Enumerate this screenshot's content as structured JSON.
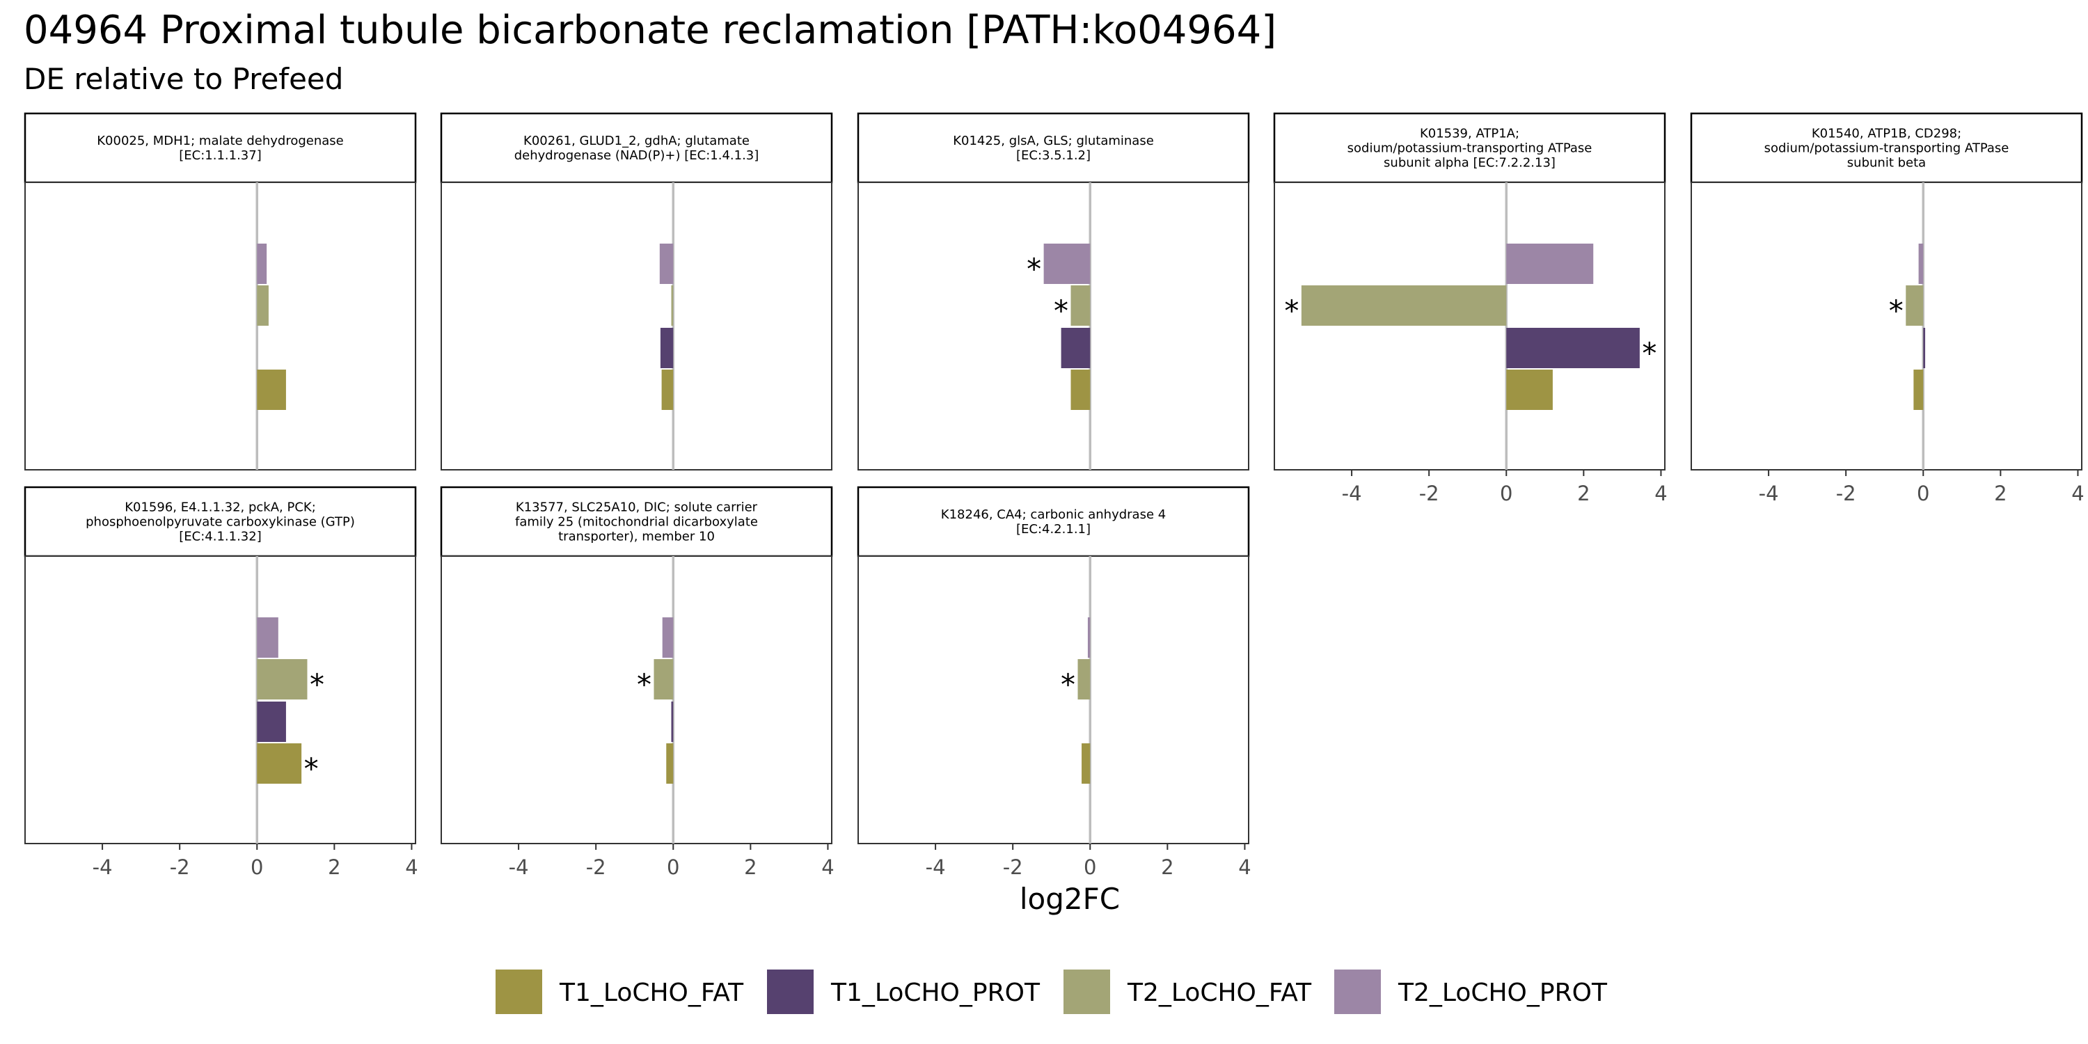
{
  "chart_data": {
    "type": "bar",
    "orientation": "horizontal",
    "title": "04964 Proximal tubule bicarbonate reclamation [PATH:ko04964]",
    "subtitle": "DE relative to Prefeed",
    "xlabel": "log2FC",
    "xlim": [
      -6,
      4.1
    ],
    "xticks": [
      "-4",
      "-2",
      "0",
      "2",
      "4"
    ],
    "legend_position": "bottom",
    "series": [
      {
        "name": "T1_LoCHO_FAT",
        "color": "#9e9444"
      },
      {
        "name": "T1_LoCHO_PROT",
        "color": "#56416f"
      },
      {
        "name": "T2_LoCHO_FAT",
        "color": "#a3a576"
      },
      {
        "name": "T2_LoCHO_PROT",
        "color": "#9c86a6"
      }
    ],
    "panels": [
      {
        "label_lines": [
          "K00025, MDH1; malate dehydrogenase",
          "[EC:1.1.1.37]"
        ],
        "values": {
          "T1_LoCHO_FAT": 0.75,
          "T1_LoCHO_PROT": null,
          "T2_LoCHO_FAT": 0.3,
          "T2_LoCHO_PROT": 0.25
        },
        "significant": {
          "T1_LoCHO_FAT": false,
          "T1_LoCHO_PROT": false,
          "T2_LoCHO_FAT": false,
          "T2_LoCHO_PROT": false
        }
      },
      {
        "label_lines": [
          "K00261, GLUD1_2, gdhA; glutamate",
          "dehydrogenase (NAD(P)+) [EC:1.4.1.3]"
        ],
        "values": {
          "T1_LoCHO_FAT": -0.3,
          "T1_LoCHO_PROT": -0.33,
          "T2_LoCHO_FAT": -0.05,
          "T2_LoCHO_PROT": -0.35
        },
        "significant": {
          "T1_LoCHO_FAT": false,
          "T1_LoCHO_PROT": false,
          "T2_LoCHO_FAT": false,
          "T2_LoCHO_PROT": false
        }
      },
      {
        "label_lines": [
          "K01425, glsA, GLS; glutaminase",
          "[EC:3.5.1.2]"
        ],
        "values": {
          "T1_LoCHO_FAT": -0.5,
          "T1_LoCHO_PROT": -0.75,
          "T2_LoCHO_FAT": -0.5,
          "T2_LoCHO_PROT": -1.2
        },
        "significant": {
          "T1_LoCHO_FAT": false,
          "T1_LoCHO_PROT": false,
          "T2_LoCHO_FAT": true,
          "T2_LoCHO_PROT": true
        }
      },
      {
        "label_lines": [
          "K01539, ATP1A;",
          "sodium/potassium-transporting ATPase",
          "subunit alpha [EC:7.2.2.13]"
        ],
        "values": {
          "T1_LoCHO_FAT": 1.2,
          "T1_LoCHO_PROT": 3.45,
          "T2_LoCHO_FAT": -5.3,
          "T2_LoCHO_PROT": 2.25
        },
        "significant": {
          "T1_LoCHO_FAT": false,
          "T1_LoCHO_PROT": true,
          "T2_LoCHO_FAT": true,
          "T2_LoCHO_PROT": false
        }
      },
      {
        "label_lines": [
          "K01540, ATP1B, CD298;",
          "sodium/potassium-transporting ATPase",
          "subunit beta"
        ],
        "values": {
          "T1_LoCHO_FAT": -0.25,
          "T1_LoCHO_PROT": 0.05,
          "T2_LoCHO_FAT": -0.45,
          "T2_LoCHO_PROT": -0.12
        },
        "significant": {
          "T1_LoCHO_FAT": false,
          "T1_LoCHO_PROT": false,
          "T2_LoCHO_FAT": true,
          "T2_LoCHO_PROT": false
        }
      },
      {
        "label_lines": [
          "K01596, E4.1.1.32, pckA, PCK;",
          "phosphoenolpyruvate carboxykinase (GTP)",
          "[EC:4.1.1.32]"
        ],
        "values": {
          "T1_LoCHO_FAT": 1.15,
          "T1_LoCHO_PROT": 0.75,
          "T2_LoCHO_FAT": 1.3,
          "T2_LoCHO_PROT": 0.55
        },
        "significant": {
          "T1_LoCHO_FAT": true,
          "T1_LoCHO_PROT": false,
          "T2_LoCHO_FAT": true,
          "T2_LoCHO_PROT": false
        }
      },
      {
        "label_lines": [
          "K13577, SLC25A10, DIC; solute carrier",
          "family 25 (mitochondrial dicarboxylate",
          "transporter), member 10"
        ],
        "values": {
          "T1_LoCHO_FAT": -0.18,
          "T1_LoCHO_PROT": -0.05,
          "T2_LoCHO_FAT": -0.5,
          "T2_LoCHO_PROT": -0.28
        },
        "significant": {
          "T1_LoCHO_FAT": false,
          "T1_LoCHO_PROT": false,
          "T2_LoCHO_FAT": true,
          "T2_LoCHO_PROT": false
        }
      },
      {
        "label_lines": [
          "K18246, CA4; carbonic anhydrase 4",
          "[EC:4.2.1.1]"
        ],
        "values": {
          "T1_LoCHO_FAT": -0.22,
          "T1_LoCHO_PROT": null,
          "T2_LoCHO_FAT": -0.32,
          "T2_LoCHO_PROT": -0.06
        },
        "significant": {
          "T1_LoCHO_FAT": false,
          "T1_LoCHO_PROT": false,
          "T2_LoCHO_FAT": true,
          "T2_LoCHO_PROT": false
        }
      }
    ]
  }
}
